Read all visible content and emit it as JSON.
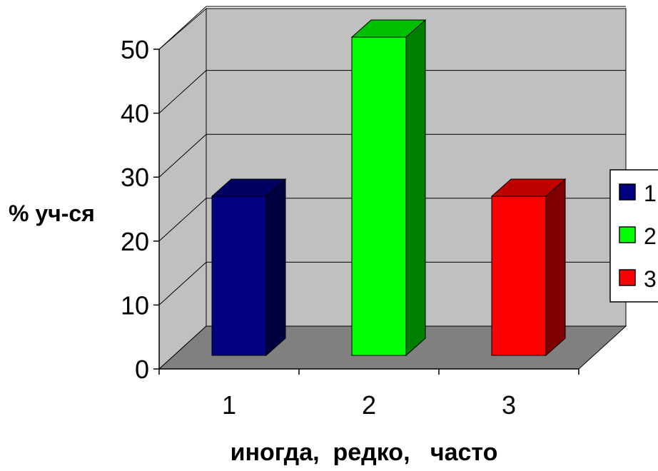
{
  "chart_data": {
    "type": "bar",
    "categories": [
      "1",
      "2",
      "3"
    ],
    "series": [
      {
        "name": "1",
        "values": [
          25,
          null,
          null
        ]
      },
      {
        "name": "2",
        "values": [
          null,
          50,
          null
        ]
      },
      {
        "name": "3",
        "values": [
          null,
          null,
          25
        ]
      }
    ],
    "values": [
      25,
      50,
      25
    ],
    "colors": [
      "#000080",
      "#00ff00",
      "#ff0000"
    ],
    "ylabel": "% уч-ся",
    "xlabel": "иногда,  редко,   часто",
    "ylim": [
      0,
      50
    ],
    "yticks": [
      "0",
      "10",
      "20",
      "30",
      "40",
      "50"
    ],
    "grid": true,
    "legend": {
      "position": "right",
      "items": [
        "1",
        "2",
        "3"
      ]
    },
    "style": "3d-column"
  }
}
